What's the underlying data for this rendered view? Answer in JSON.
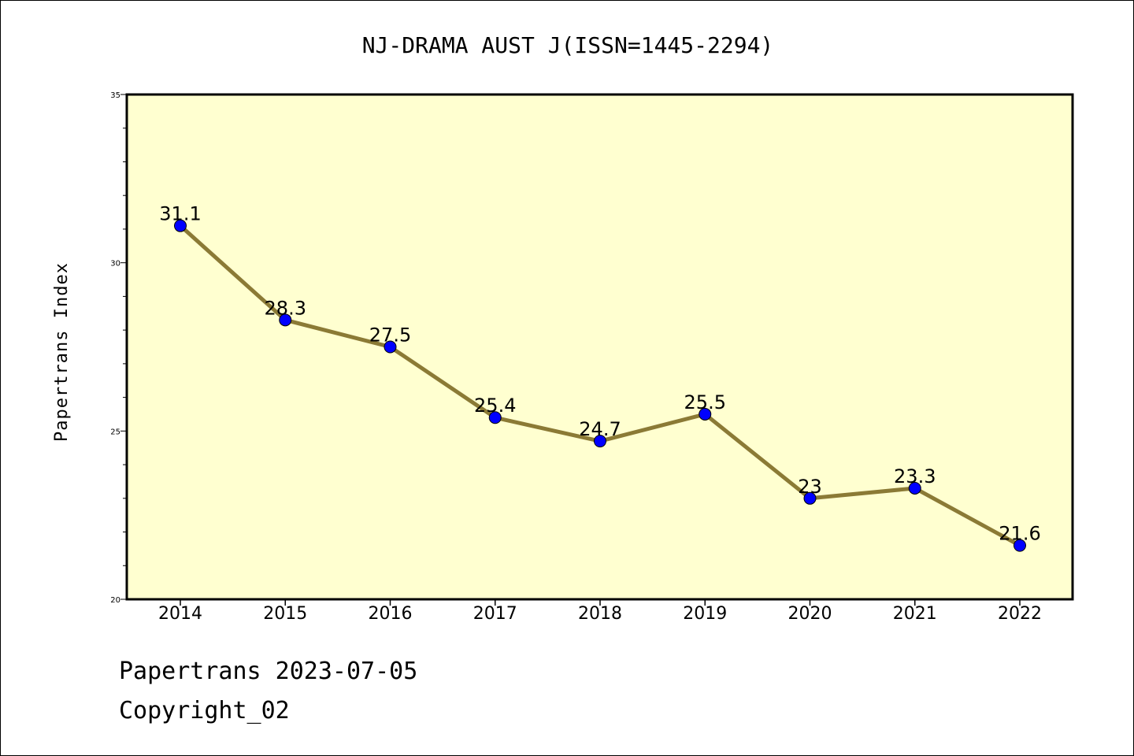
{
  "chart_data": {
    "type": "line",
    "title": "NJ-DRAMA AUST J(ISSN=1445-2294)",
    "xlabel": "",
    "ylabel": "Papertrans Index",
    "categories": [
      "2014",
      "2015",
      "2016",
      "2017",
      "2018",
      "2019",
      "2020",
      "2021",
      "2022"
    ],
    "series": [
      {
        "values": [
          31.1,
          28.3,
          27.5,
          25.4,
          24.7,
          25.5,
          23,
          23.3,
          21.6
        ],
        "data_labels": [
          "31.1",
          "28.3",
          "27.5",
          "25.4",
          "24.7",
          "25.5",
          "23",
          "23.3",
          "21.6"
        ]
      }
    ],
    "ylim": [
      20,
      35
    ],
    "yticks": [
      "20",
      "25",
      "30",
      "35"
    ],
    "grid": false,
    "legend": "none",
    "colors": {
      "plot_background": "#ffffd0",
      "line": "#8b7a35",
      "marker": "#0000ff"
    }
  },
  "footer": {
    "line1": "Papertrans 2023-07-05",
    "line2": "Copyright_02"
  }
}
